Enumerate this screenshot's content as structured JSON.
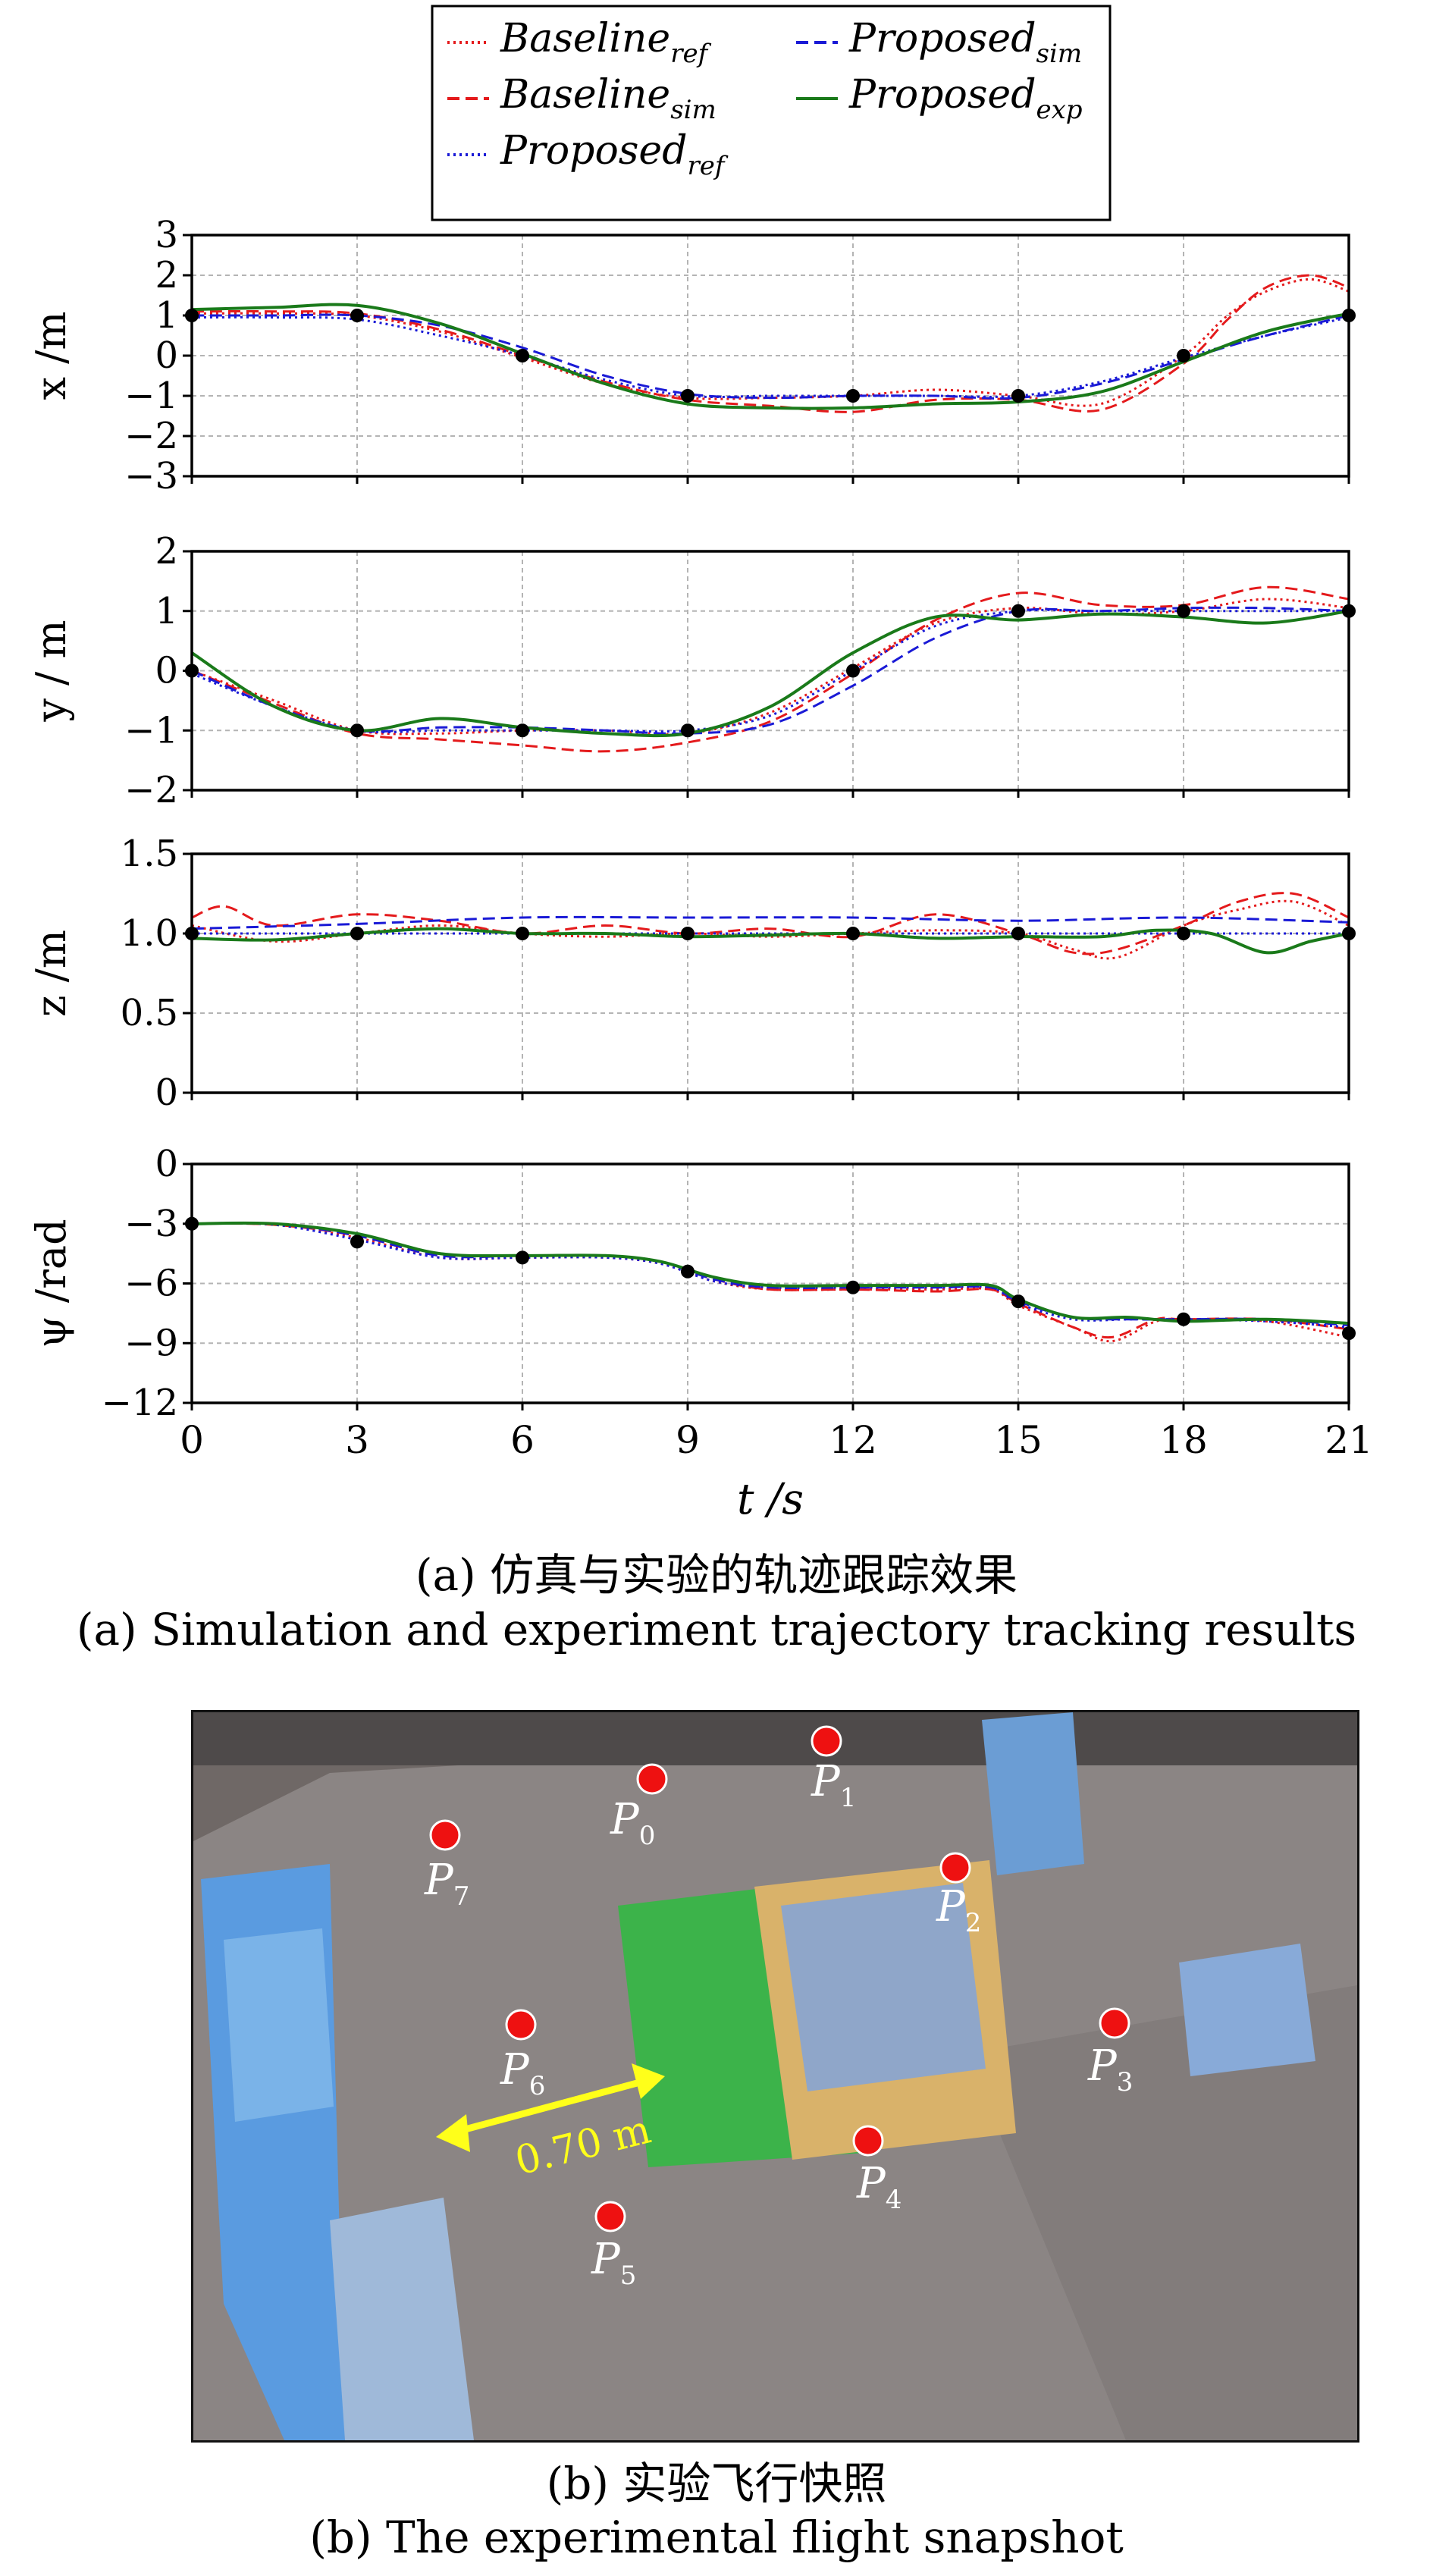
{
  "legend": {
    "entries": [
      {
        "label": "Baseline",
        "sub": "ref",
        "color": "#e41a1c",
        "dash": "3,5"
      },
      {
        "label": "Baseline",
        "sub": "sim",
        "color": "#e41a1c",
        "dash": "16,8"
      },
      {
        "label": "Proposed",
        "sub": "ref",
        "color": "#1a1ad6",
        "dash": "3,5"
      },
      {
        "label": "Proposed",
        "sub": "sim",
        "color": "#1a1ad6",
        "dash": "16,8"
      },
      {
        "label": "Proposed",
        "sub": "exp",
        "color": "#1a7a1a",
        "dash": ""
      }
    ]
  },
  "chart_data": [
    {
      "type": "line",
      "ylabel": "x /m",
      "ylim": [
        -3,
        3
      ],
      "yticks": [
        "3",
        "2",
        "1",
        "0",
        "−1",
        "−2",
        "−3"
      ],
      "ytick_values": [
        3,
        2,
        1,
        0,
        -1,
        -2,
        -3
      ],
      "xlim": [
        0,
        21
      ],
      "waypoints": {
        "x": [
          0,
          3,
          6,
          9,
          12,
          15,
          18,
          21
        ],
        "y": [
          1,
          1,
          0,
          -1,
          -1,
          -1,
          0,
          1
        ]
      },
      "series": [
        {
          "name": "Baseline_ref",
          "x": [
            0,
            1.5,
            3,
            4.5,
            6,
            7.5,
            9,
            10.5,
            12,
            13.5,
            15,
            16.5,
            18,
            18.8,
            19.5,
            20.3,
            21
          ],
          "y": [
            1.05,
            1.05,
            1.0,
            0.6,
            -0.05,
            -0.7,
            -1.05,
            -1.05,
            -1.0,
            -0.85,
            -1.0,
            -1.2,
            0.0,
            1.0,
            1.6,
            1.9,
            1.6
          ]
        },
        {
          "name": "Baseline_sim",
          "x": [
            0,
            1.5,
            3,
            4.5,
            6,
            7.5,
            9,
            10.5,
            12,
            13.5,
            15,
            16.5,
            18,
            18.8,
            19.5,
            20.3,
            21
          ],
          "y": [
            1.1,
            1.1,
            1.05,
            0.65,
            0.0,
            -0.65,
            -1.1,
            -1.25,
            -1.4,
            -1.1,
            -1.1,
            -1.35,
            -0.2,
            0.9,
            1.7,
            2.0,
            1.7
          ]
        },
        {
          "name": "Proposed_ref",
          "x": [
            0,
            1.5,
            3,
            4.5,
            6,
            7.5,
            9,
            10.5,
            12,
            13.5,
            15,
            16.5,
            18,
            19.5,
            21
          ],
          "y": [
            0.95,
            0.95,
            0.9,
            0.5,
            0.0,
            -0.6,
            -1.0,
            -1.0,
            -1.0,
            -1.0,
            -1.0,
            -0.65,
            -0.05,
            0.5,
            0.95
          ]
        },
        {
          "name": "Proposed_sim",
          "x": [
            0,
            1.5,
            3,
            4.5,
            6,
            7.5,
            9,
            10.5,
            12,
            13.5,
            15,
            16.5,
            18,
            19.5,
            21
          ],
          "y": [
            1.0,
            1.0,
            1.0,
            0.75,
            0.2,
            -0.5,
            -0.95,
            -1.05,
            -1.0,
            -1.0,
            -1.05,
            -0.7,
            -0.1,
            0.5,
            1.0
          ]
        },
        {
          "name": "Proposed_exp",
          "x": [
            0,
            1.5,
            3,
            4.5,
            6,
            7.5,
            9,
            10.5,
            12,
            13.5,
            15,
            16.5,
            18,
            19.5,
            21
          ],
          "y": [
            1.15,
            1.2,
            1.25,
            0.8,
            0.05,
            -0.7,
            -1.2,
            -1.3,
            -1.3,
            -1.2,
            -1.15,
            -0.9,
            -0.15,
            0.6,
            1.05
          ]
        }
      ]
    },
    {
      "type": "line",
      "ylabel": "y / m",
      "ylim": [
        -2,
        2
      ],
      "yticks": [
        "2",
        "1",
        "0",
        "−1",
        "−2"
      ],
      "ytick_values": [
        2,
        1,
        0,
        -1,
        -2
      ],
      "xlim": [
        0,
        21
      ],
      "waypoints": {
        "x": [
          0,
          3,
          6,
          9,
          12,
          15,
          18,
          21
        ],
        "y": [
          0,
          -1,
          -1,
          -1,
          0,
          1,
          1,
          1
        ]
      },
      "series": [
        {
          "name": "Baseline_ref",
          "x": [
            0,
            1.5,
            3,
            4.5,
            6,
            7.5,
            9,
            10.5,
            12,
            13.5,
            15,
            16.5,
            18,
            19.5,
            21
          ],
          "y": [
            0.0,
            -0.5,
            -1.0,
            -1.05,
            -1.0,
            -1.0,
            -1.05,
            -0.7,
            0.05,
            0.8,
            1.05,
            0.95,
            1.0,
            1.2,
            1.05
          ]
        },
        {
          "name": "Baseline_sim",
          "x": [
            0,
            1.5,
            3,
            4.5,
            6,
            7.5,
            9,
            10.5,
            12,
            13.5,
            15,
            16.5,
            18,
            19.5,
            21
          ],
          "y": [
            0.0,
            -0.55,
            -1.05,
            -1.15,
            -1.25,
            -1.35,
            -1.2,
            -0.85,
            -0.05,
            0.85,
            1.3,
            1.1,
            1.1,
            1.4,
            1.2
          ]
        },
        {
          "name": "Proposed_ref",
          "x": [
            0,
            1.5,
            3,
            4.5,
            6,
            7.5,
            9,
            10.5,
            12,
            13.5,
            15,
            16.5,
            18,
            19.5,
            21
          ],
          "y": [
            -0.05,
            -0.6,
            -1.0,
            -1.0,
            -1.0,
            -1.0,
            -1.0,
            -0.75,
            0.0,
            0.75,
            1.0,
            1.0,
            1.0,
            1.0,
            1.0
          ]
        },
        {
          "name": "Proposed_sim",
          "x": [
            0,
            1.5,
            3,
            4.5,
            6,
            7.5,
            9,
            10.5,
            12,
            13.5,
            15,
            16.5,
            18,
            19.5,
            21
          ],
          "y": [
            0.0,
            -0.6,
            -1.0,
            -0.95,
            -0.95,
            -1.0,
            -1.05,
            -0.9,
            -0.25,
            0.55,
            1.0,
            1.0,
            1.05,
            1.05,
            1.0
          ]
        },
        {
          "name": "Proposed_exp",
          "x": [
            0,
            1.5,
            3,
            4.5,
            6,
            7.5,
            9,
            10.5,
            12,
            13.5,
            15,
            16.5,
            18,
            19.5,
            21
          ],
          "y": [
            0.3,
            -0.6,
            -1.0,
            -0.8,
            -0.95,
            -1.05,
            -1.05,
            -0.6,
            0.3,
            0.9,
            0.85,
            0.95,
            0.9,
            0.8,
            1.0
          ]
        }
      ]
    },
    {
      "type": "line",
      "ylabel": "z /m",
      "ylim": [
        0,
        1.5
      ],
      "yticks": [
        "1.5",
        "1.0",
        "0.5",
        "0"
      ],
      "ytick_values": [
        1.5,
        1.0,
        0.5,
        0
      ],
      "xlim": [
        0,
        21
      ],
      "waypoints": {
        "x": [
          0,
          3,
          6,
          9,
          12,
          15,
          18,
          21
        ],
        "y": [
          1,
          1,
          1,
          1,
          1,
          1,
          1,
          1
        ]
      },
      "series": [
        {
          "name": "Baseline_ref",
          "x": [
            0,
            1.5,
            3,
            4.5,
            6,
            7.5,
            9,
            10.5,
            12,
            13.5,
            15,
            16,
            16.8,
            18,
            19,
            20,
            21
          ],
          "y": [
            1.05,
            0.95,
            1.0,
            1.05,
            1.0,
            0.98,
            1.0,
            0.98,
            1.0,
            1.02,
            1.0,
            0.9,
            0.85,
            1.05,
            1.15,
            1.2,
            1.05
          ]
        },
        {
          "name": "Baseline_sim",
          "x": [
            0,
            0.6,
            1.5,
            3,
            4.5,
            6,
            7.5,
            9,
            10.5,
            12,
            13.5,
            15,
            16,
            16.8,
            18,
            19,
            20,
            21
          ],
          "y": [
            1.1,
            1.17,
            1.05,
            1.12,
            1.08,
            1.0,
            1.05,
            1.0,
            1.03,
            0.98,
            1.12,
            1.0,
            0.88,
            0.9,
            1.05,
            1.2,
            1.25,
            1.1
          ]
        },
        {
          "name": "Proposed_ref",
          "x": [
            0,
            3,
            6,
            9,
            12,
            15,
            18,
            21
          ],
          "y": [
            1.0,
            1.0,
            1.0,
            1.0,
            1.0,
            1.0,
            1.0,
            1.0
          ]
        },
        {
          "name": "Proposed_sim",
          "x": [
            0,
            3,
            6,
            9,
            12,
            15,
            18,
            21
          ],
          "y": [
            1.03,
            1.06,
            1.1,
            1.1,
            1.1,
            1.08,
            1.1,
            1.07
          ]
        },
        {
          "name": "Proposed_exp",
          "x": [
            0,
            1.5,
            3,
            4.5,
            6,
            7.5,
            9,
            10.5,
            12,
            13.5,
            15,
            16.5,
            17.5,
            18.5,
            19.5,
            20.3,
            21
          ],
          "y": [
            0.97,
            0.96,
            1.0,
            1.03,
            1.0,
            1.0,
            0.98,
            0.99,
            1.0,
            0.97,
            0.98,
            0.98,
            1.02,
            1.0,
            0.88,
            0.95,
            1.0
          ]
        }
      ]
    },
    {
      "type": "line",
      "ylabel": "ψ /rad",
      "ylim": [
        -12,
        0
      ],
      "yticks": [
        "0",
        "−3",
        "−6",
        "−9",
        "−12"
      ],
      "ytick_values": [
        0,
        -3,
        -6,
        -9,
        -12
      ],
      "xlim": [
        0,
        21
      ],
      "xlabel": "t /s",
      "xticks": [
        "0",
        "3",
        "6",
        "9",
        "12",
        "15",
        "18",
        "21"
      ],
      "xtick_values": [
        0,
        3,
        6,
        9,
        12,
        15,
        18,
        21
      ],
      "waypoints": {
        "x": [
          0,
          3,
          6,
          9,
          12,
          15,
          18,
          21
        ],
        "y": [
          -3.0,
          -3.9,
          -4.7,
          -5.4,
          -6.2,
          -6.9,
          -7.8,
          -8.5
        ]
      },
      "series": [
        {
          "name": "Baseline_ref",
          "x": [
            0,
            1.5,
            3,
            4.5,
            6,
            7.5,
            8.5,
            9.5,
            10.5,
            12,
            13.5,
            14.5,
            15,
            16,
            16.7,
            17.5,
            18,
            19.5,
            21
          ],
          "y": [
            -3.0,
            -3.05,
            -3.7,
            -4.7,
            -4.7,
            -4.7,
            -5.0,
            -5.9,
            -6.3,
            -6.3,
            -6.3,
            -6.3,
            -7.1,
            -8.2,
            -8.9,
            -7.9,
            -7.8,
            -7.9,
            -8.7
          ]
        },
        {
          "name": "Baseline_sim",
          "x": [
            0,
            1.5,
            3,
            4.5,
            6,
            7.5,
            8.5,
            9.5,
            10.5,
            12,
            13.5,
            14.5,
            15,
            16,
            16.7,
            17.5,
            18,
            19.5,
            21
          ],
          "y": [
            -3.0,
            -3.05,
            -3.6,
            -4.6,
            -4.6,
            -4.6,
            -4.9,
            -5.8,
            -6.3,
            -6.3,
            -6.4,
            -6.3,
            -7.0,
            -8.2,
            -8.7,
            -7.8,
            -7.8,
            -7.8,
            -8.3
          ]
        },
        {
          "name": "Proposed_ref",
          "x": [
            0,
            1.5,
            3,
            4.5,
            6,
            7.5,
            8.5,
            9.5,
            10.5,
            12,
            13.5,
            14.5,
            15,
            16,
            17,
            18,
            19.5,
            21
          ],
          "y": [
            -3.0,
            -3.05,
            -3.8,
            -4.7,
            -4.7,
            -4.7,
            -5.0,
            -5.9,
            -6.2,
            -6.2,
            -6.2,
            -6.2,
            -7.0,
            -7.8,
            -7.8,
            -7.8,
            -7.9,
            -8.2
          ]
        },
        {
          "name": "Proposed_sim",
          "x": [
            0,
            1.5,
            3,
            4.5,
            6,
            7.5,
            8.5,
            9.5,
            10.5,
            12,
            13.5,
            14.5,
            15,
            16,
            17,
            18,
            19.5,
            21
          ],
          "y": [
            -3.0,
            -3.0,
            -3.6,
            -4.6,
            -4.6,
            -4.6,
            -4.9,
            -5.8,
            -6.2,
            -6.2,
            -6.2,
            -6.2,
            -6.9,
            -7.7,
            -7.8,
            -7.8,
            -7.8,
            -8.1
          ]
        },
        {
          "name": "Proposed_exp",
          "x": [
            0,
            1.5,
            3,
            4.5,
            6,
            7.5,
            8.5,
            9.5,
            10.5,
            12,
            13.5,
            14.5,
            15,
            16,
            17,
            18,
            19.5,
            21
          ],
          "y": [
            -3.0,
            -3.0,
            -3.5,
            -4.5,
            -4.6,
            -4.6,
            -4.9,
            -5.7,
            -6.1,
            -6.1,
            -6.1,
            -6.1,
            -6.8,
            -7.7,
            -7.7,
            -7.9,
            -7.8,
            -8.0
          ]
        }
      ]
    }
  ],
  "captions": {
    "a_cn": "(a) 仿真与实验的轨迹跟踪效果",
    "a_en": "(a) Simulation and experiment trajectory tracking results",
    "b_cn": "(b) 实验飞行快照",
    "b_en": "(b) The experimental flight snapshot"
  },
  "photo": {
    "distance_label": "0.70 m",
    "waypoints": [
      {
        "name": "P",
        "sub": "0"
      },
      {
        "name": "P",
        "sub": "1"
      },
      {
        "name": "P",
        "sub": "2"
      },
      {
        "name": "P",
        "sub": "3"
      },
      {
        "name": "P",
        "sub": "4"
      },
      {
        "name": "P",
        "sub": "5"
      },
      {
        "name": "P",
        "sub": "6"
      },
      {
        "name": "P",
        "sub": "7"
      }
    ],
    "marker_color": "#ee1111",
    "arrow_color": "#ffff1a"
  }
}
